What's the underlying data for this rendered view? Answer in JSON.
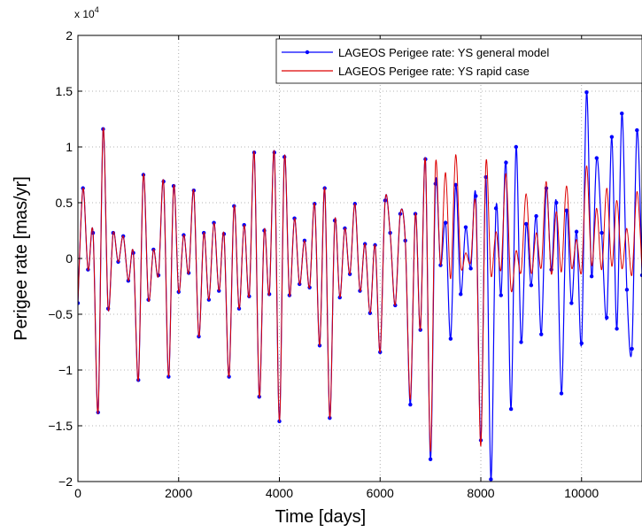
{
  "chart_data": {
    "type": "line",
    "xlabel": "Time [days]",
    "ylabel": "Perigee rate [mas/yr]",
    "y_exponent_label": "x 10",
    "y_exponent_power": "4",
    "xlim": [
      0,
      11200
    ],
    "ylim": [
      -20000,
      20000
    ],
    "x_ticks": [
      0,
      2000,
      4000,
      6000,
      8000,
      10000
    ],
    "x_tick_labels": [
      "0",
      "2000",
      "4000",
      "6000",
      "8000",
      "10000"
    ],
    "y_ticks": [
      -20000,
      -15000,
      -10000,
      -5000,
      0,
      5000,
      10000,
      15000,
      20000
    ],
    "y_tick_labels": [
      "−2",
      "−1.5",
      "−1",
      "−0.5",
      "0",
      "0.5",
      "1",
      "1.5",
      "2"
    ],
    "grid": true,
    "legend_position": "top-right",
    "series": [
      {
        "name": "LAGEOS Perigee rate: YS general model",
        "color": "#0000ff",
        "marker": "dot",
        "x": [
          0,
          100,
          200,
          300,
          400,
          500,
          600,
          700,
          800,
          900,
          1000,
          1100,
          1200,
          1300,
          1400,
          1500,
          1600,
          1700,
          1800,
          1900,
          2000,
          2100,
          2200,
          2300,
          2400,
          2500,
          2600,
          2700,
          2800,
          2900,
          3000,
          3100,
          3200,
          3300,
          3400,
          3500,
          3600,
          3700,
          3800,
          3900,
          4000,
          4100,
          4200,
          4300,
          4400,
          4500,
          4600,
          4700,
          4800,
          4900,
          5000,
          5100,
          5200,
          5300,
          5400,
          5500,
          5600,
          5700,
          5800,
          5900,
          6000,
          6100,
          6200,
          6300,
          6400,
          6500,
          6600,
          6700,
          6800,
          6900,
          7000,
          7100,
          7200,
          7300,
          7400,
          7500,
          7600,
          7700,
          7800,
          7900,
          8000,
          8100,
          8200,
          8300,
          8400,
          8500,
          8600,
          8700,
          8800,
          8900,
          9000,
          9100,
          9200,
          9300,
          9400,
          9500,
          9600,
          9700,
          9800,
          9900,
          10000,
          10100,
          10200,
          10300,
          10400,
          10500,
          10600,
          10700,
          10800,
          10900,
          11000,
          11100,
          11200
        ],
        "values": [
          -4000,
          6300,
          -1000,
          2300,
          -13800,
          11600,
          -4500,
          2300,
          -300,
          2000,
          -2000,
          500,
          -10900,
          7500,
          -3700,
          800,
          -1500,
          6900,
          -10600,
          6500,
          -3000,
          2100,
          -1300,
          6100,
          -7000,
          2300,
          -3700,
          3200,
          -2900,
          2200,
          -10600,
          4700,
          -4500,
          3000,
          -3400,
          9500,
          -12400,
          2500,
          -3200,
          9500,
          -14600,
          9100,
          -3300,
          3600,
          -2300,
          1600,
          -2600,
          4900,
          -7800,
          6300,
          -14300,
          3400,
          -3500,
          2700,
          -1400,
          4900,
          -2900,
          1300,
          -4900,
          1200,
          -8400,
          5200,
          2300,
          -4200,
          4000,
          1600,
          -13100,
          4000,
          -6400,
          8900,
          -18000,
          6700,
          -600,
          3200,
          -7200,
          6600,
          -3200,
          2800,
          -900,
          5600,
          -16300,
          7300,
          -19800,
          4500,
          -3300,
          8600,
          -13500,
          10000,
          -7500,
          3100,
          -2400,
          3800,
          -6800,
          6300,
          -1000,
          5000,
          -12100,
          4300,
          -4000,
          2400,
          -7600,
          14900,
          -1600,
          9000,
          2300,
          -5300,
          10900,
          -6300,
          13000,
          -2800,
          -8100,
          11500,
          -1500
        ]
      },
      {
        "name": "LAGEOS Perigee rate: YS rapid case",
        "color": "#dd0000",
        "marker": "none",
        "x": [
          0,
          100,
          200,
          300,
          400,
          500,
          600,
          700,
          800,
          900,
          1000,
          1100,
          1200,
          1300,
          1400,
          1500,
          1600,
          1700,
          1800,
          1900,
          2000,
          2100,
          2200,
          2300,
          2400,
          2500,
          2600,
          2700,
          2800,
          2900,
          3000,
          3100,
          3200,
          3300,
          3400,
          3500,
          3600,
          3700,
          3800,
          3900,
          4000,
          4100,
          4200,
          4300,
          4400,
          4500,
          4600,
          4700,
          4800,
          4900,
          5000,
          5100,
          5200,
          5300,
          5400,
          5500,
          5600,
          5700,
          5800,
          5900,
          6000,
          6100,
          6200,
          6300,
          6400,
          6500,
          6600,
          6700,
          6800,
          6900,
          7000,
          7100,
          7200,
          7300,
          7400,
          7500,
          7600,
          7700,
          7800,
          7900,
          8000,
          8100,
          8200,
          8300,
          8400,
          8500,
          8600,
          8700,
          8800,
          8900,
          9000,
          9100,
          9200,
          9300,
          9400,
          9500,
          9600,
          9700,
          9800,
          9900,
          10000,
          10100,
          10200,
          10300,
          10400,
          10500,
          10600,
          10700,
          10800,
          10900,
          11000,
          11100,
          11200
        ],
        "values": [
          -4000,
          6300,
          -1000,
          2300,
          -13800,
          11600,
          -4500,
          2300,
          -300,
          2000,
          -2000,
          500,
          -10900,
          7500,
          -3700,
          800,
          -1500,
          6900,
          -10600,
          6500,
          -3000,
          2100,
          -1300,
          6100,
          -7000,
          2300,
          -3700,
          3200,
          -2900,
          2200,
          -10600,
          4700,
          -4500,
          3000,
          -3400,
          9500,
          -12400,
          2500,
          -3200,
          9500,
          -14600,
          9100,
          -3300,
          3600,
          -2300,
          1600,
          -2600,
          4900,
          -7800,
          6300,
          -14300,
          3400,
          -3500,
          2700,
          -1400,
          4900,
          -2900,
          1300,
          -4900,
          1200,
          -8400,
          5200,
          2300,
          -4200,
          4000,
          1600,
          -12600,
          4000,
          -6400,
          8900,
          -17300,
          8400,
          -600,
          7700,
          -1800,
          9300,
          -600,
          500,
          -300,
          4700,
          -16800,
          8500,
          -1500,
          2400,
          -1000,
          7600,
          -2800,
          700,
          -1200,
          5800,
          -1300,
          2300,
          -800,
          6900,
          -1400,
          4200,
          -1200,
          6500,
          -800,
          1700,
          -1200,
          8300,
          -600,
          4500,
          -1000,
          6300,
          -700,
          5200,
          -900,
          2700,
          -1500,
          6000,
          -900
        ]
      }
    ]
  }
}
